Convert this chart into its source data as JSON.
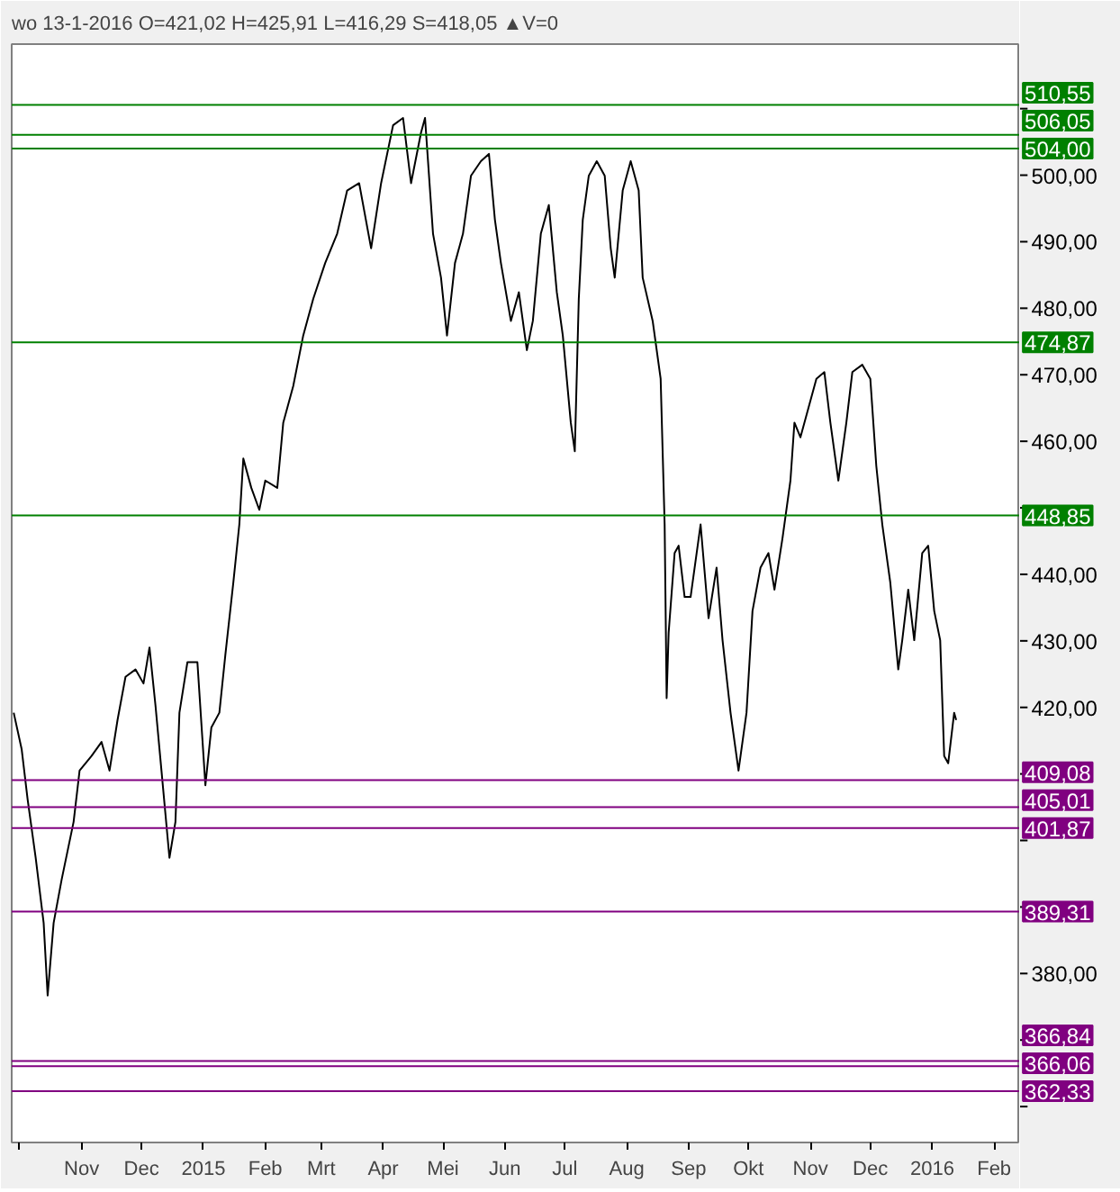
{
  "chart_data": {
    "type": "line",
    "title": "wo 13-1-2016  O=421,02  H=425,91  L=416,29  S=418,05 ▲V=0",
    "x": [
      "2014-09-28",
      "2014-10-02",
      "2014-10-05",
      "2014-10-09",
      "2014-10-13",
      "2014-10-15",
      "2014-10-18",
      "2014-10-22",
      "2014-10-28",
      "2014-10-31",
      "2014-11-06",
      "2014-11-11",
      "2014-11-15",
      "2014-11-19",
      "2014-11-23",
      "2014-11-28",
      "2014-12-02",
      "2014-12-05",
      "2014-12-08",
      "2014-12-11",
      "2014-12-15",
      "2014-12-18",
      "2014-12-20",
      "2014-12-24",
      "2014-12-29",
      "2015-01-02",
      "2015-01-05",
      "2015-01-09",
      "2015-01-12",
      "2015-01-16",
      "2015-01-19",
      "2015-01-21",
      "2015-01-25",
      "2015-01-29",
      "2015-02-01",
      "2015-02-07",
      "2015-02-10",
      "2015-02-15",
      "2015-02-20",
      "2015-02-25",
      "2015-03-03",
      "2015-03-09",
      "2015-03-14",
      "2015-03-20",
      "2015-03-26",
      "2015-03-31",
      "2015-04-06",
      "2015-04-11",
      "2015-04-15",
      "2015-04-20",
      "2015-04-22",
      "2015-04-26",
      "2015-04-30",
      "2015-05-03",
      "2015-05-07",
      "2015-05-11",
      "2015-05-15",
      "2015-05-20",
      "2015-05-24",
      "2015-05-27",
      "2015-05-30",
      "2015-06-04",
      "2015-06-08",
      "2015-06-12",
      "2015-06-15",
      "2015-06-19",
      "2015-06-23",
      "2015-06-27",
      "2015-06-30",
      "2015-07-04",
      "2015-07-06",
      "2015-07-08",
      "2015-07-10",
      "2015-07-13",
      "2015-07-17",
      "2015-07-21",
      "2015-07-24",
      "2015-07-26",
      "2015-07-30",
      "2015-08-03",
      "2015-08-07",
      "2015-08-09",
      "2015-08-14",
      "2015-08-18",
      "2015-08-20",
      "2015-08-21",
      "2015-08-22",
      "2015-08-25",
      "2015-08-27",
      "2015-08-30",
      "2015-09-02",
      "2015-09-07",
      "2015-09-11",
      "2015-09-15",
      "2015-09-18",
      "2015-09-22",
      "2015-09-26",
      "2015-09-30",
      "2015-10-03",
      "2015-10-07",
      "2015-10-11",
      "2015-10-14",
      "2015-10-18",
      "2015-10-22",
      "2015-10-24",
      "2015-10-27",
      "2015-10-31",
      "2015-11-04",
      "2015-11-08",
      "2015-11-11",
      "2015-11-15",
      "2015-11-19",
      "2015-11-22",
      "2015-11-27",
      "2015-12-01",
      "2015-12-04",
      "2015-12-07",
      "2015-12-11",
      "2015-12-15",
      "2015-12-17",
      "2015-12-20",
      "2015-12-23",
      "2015-12-27",
      "2015-12-30",
      "2016-01-02",
      "2016-01-05",
      "2016-01-07",
      "2016-01-09",
      "2016-01-12",
      "2016-01-13"
    ],
    "series": [
      {
        "color": "#000000",
        "values": [
          419.2,
          413.7,
          406.1,
          397.4,
          387.6,
          376.7,
          387.6,
          394.1,
          402.8,
          410.5,
          412.7,
          414.8,
          410.5,
          418.1,
          424.6,
          425.7,
          423.6,
          429.0,
          420.3,
          410.5,
          397.4,
          402.8,
          419.2,
          426.8,
          426.8,
          408.3,
          417.0,
          419.2,
          427.9,
          438.8,
          447.5,
          457.4,
          453.0,
          449.7,
          454.1,
          453.0,
          462.8,
          468.3,
          475.9,
          481.4,
          486.8,
          491.2,
          497.7,
          498.8,
          489.0,
          498.8,
          507.5,
          508.6,
          498.8,
          506.4,
          508.6,
          491.2,
          484.6,
          475.9,
          486.8,
          491.2,
          499.9,
          502.1,
          503.2,
          493.3,
          486.8,
          478.1,
          482.4,
          473.7,
          478.1,
          491.2,
          495.5,
          482.4,
          475.9,
          462.8,
          458.5,
          481.4,
          493.3,
          499.9,
          502.1,
          499.9,
          489.0,
          484.6,
          497.7,
          502.1,
          497.7,
          484.6,
          478.1,
          469.4,
          447.5,
          421.4,
          431.2,
          443.2,
          444.3,
          436.6,
          436.6,
          447.5,
          433.4,
          441.0,
          430.1,
          419.2,
          410.5,
          419.2,
          434.5,
          441.0,
          443.2,
          437.7,
          445.4,
          454.1,
          462.8,
          460.6,
          465.0,
          469.4,
          470.4,
          462.8,
          454.1,
          462.8,
          470.4,
          471.5,
          469.4,
          456.3,
          447.5,
          438.8,
          425.7,
          430.1,
          437.7,
          430.1,
          443.2,
          444.3,
          434.5,
          430.1,
          412.7,
          411.6,
          419.2,
          418.1
        ]
      }
    ],
    "xlim": [
      "2014-09-27",
      "2016-02-14"
    ],
    "xticks": [
      {
        "value": "2014-10-01",
        "label": null
      },
      {
        "value": "2014-11-01",
        "label": "Nov"
      },
      {
        "value": "2014-12-01",
        "label": "Dec"
      },
      {
        "value": "2015-01-01",
        "label": "2015"
      },
      {
        "value": "2015-02-01",
        "label": "Feb"
      },
      {
        "value": "2015-03-01",
        "label": "Mrt"
      },
      {
        "value": "2015-04-01",
        "label": "Apr"
      },
      {
        "value": "2015-05-01",
        "label": "Mei"
      },
      {
        "value": "2015-06-01",
        "label": "Jun"
      },
      {
        "value": "2015-07-01",
        "label": "Jul"
      },
      {
        "value": "2015-08-01",
        "label": "Aug"
      },
      {
        "value": "2015-09-01",
        "label": "Sep"
      },
      {
        "value": "2015-10-01",
        "label": "Okt"
      },
      {
        "value": "2015-11-01",
        "label": "Nov"
      },
      {
        "value": "2015-12-01",
        "label": "Dec"
      },
      {
        "value": "2016-01-01",
        "label": "2016"
      },
      {
        "value": "2016-02-01",
        "label": "Feb"
      }
    ],
    "ylim": [
      354.6,
      519.7
    ],
    "yticks": [
      {
        "value": 360,
        "label": null
      },
      {
        "value": 370,
        "label": null
      },
      {
        "value": 380,
        "label": "380,00"
      },
      {
        "value": 390,
        "label": null
      },
      {
        "value": 400,
        "label": null
      },
      {
        "value": 410,
        "label": null
      },
      {
        "value": 420,
        "label": "420,00"
      },
      {
        "value": 430,
        "label": "430,00"
      },
      {
        "value": 440,
        "label": "440,00"
      },
      {
        "value": 450,
        "label": null
      },
      {
        "value": 460,
        "label": "460,00"
      },
      {
        "value": 470,
        "label": "470,00"
      },
      {
        "value": 480,
        "label": "480,00"
      },
      {
        "value": 490,
        "label": "490,00"
      },
      {
        "value": 500,
        "label": "500,00"
      },
      {
        "value": 510,
        "label": null
      }
    ],
    "ref_lines": [
      {
        "axis": "y",
        "value": 510.55,
        "label": "510,55",
        "color": "#008000"
      },
      {
        "axis": "y",
        "value": 506.05,
        "label": "506,05",
        "color": "#008000"
      },
      {
        "axis": "y",
        "value": 504.0,
        "label": "504,00",
        "color": "#008000"
      },
      {
        "axis": "y",
        "value": 474.87,
        "label": "474,87",
        "color": "#008000"
      },
      {
        "axis": "y",
        "value": 448.85,
        "label": "448,85",
        "color": "#008000"
      },
      {
        "axis": "y",
        "value": 409.08,
        "label": "409,08",
        "color": "#800080"
      },
      {
        "axis": "y",
        "value": 405.01,
        "label": "405,01",
        "color": "#800080"
      },
      {
        "axis": "y",
        "value": 401.87,
        "label": "401,87",
        "color": "#800080"
      },
      {
        "axis": "y",
        "value": 389.31,
        "label": "389,31",
        "color": "#800080"
      },
      {
        "axis": "y",
        "value": 366.84,
        "label": "366,84",
        "color": "#800080"
      },
      {
        "axis": "y",
        "value": 366.06,
        "label": "366,06",
        "color": "#800080"
      },
      {
        "axis": "y",
        "value": 362.33,
        "label": "362,33",
        "color": "#800080"
      }
    ],
    "grid": false
  }
}
